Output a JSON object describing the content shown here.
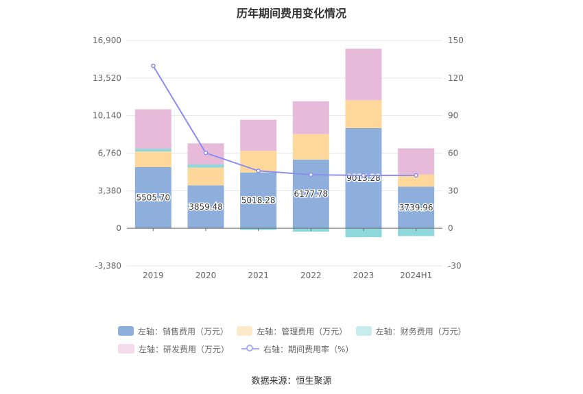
{
  "chart_data": {
    "type": "bar",
    "title": "历年期间费用变化情况",
    "categories": [
      "2019",
      "2020",
      "2021",
      "2022",
      "2023",
      "2024H1"
    ],
    "left_axis": {
      "ticks": [
        "16,900",
        "13,520",
        "10,140",
        "6,760",
        "3,380",
        "0",
        "-3,380"
      ],
      "ylim": [
        -3380,
        16900
      ]
    },
    "right_axis": {
      "ticks": [
        "150",
        "120",
        "90",
        "60",
        "30",
        "0",
        "-30"
      ],
      "ylim": [
        -30,
        150
      ]
    },
    "series": [
      {
        "name": "左轴：销售费用（万元）",
        "color": "#8eaedb",
        "values": [
          5505.7,
          3859.48,
          5018.28,
          6177.78,
          9013.28,
          3739.96
        ],
        "labels": [
          "5505.70",
          "3859.48",
          "5018.28",
          "6177.78",
          "9013.28",
          "3739.96"
        ]
      },
      {
        "name": "左轴：管理费用（万元）",
        "color": "#fdd89a",
        "values": [
          1400,
          1600,
          1950,
          2300,
          2500,
          1100
        ]
      },
      {
        "name": "左轴：财务费用（万元）",
        "color": "#8ed8dc",
        "values": [
          250,
          280,
          -150,
          -300,
          -800,
          -700
        ]
      },
      {
        "name": "左轴：研发费用（万元）",
        "color": "#e8bada",
        "values": [
          3550,
          1900,
          2800,
          2950,
          4650,
          2350
        ]
      }
    ],
    "line_series": {
      "name": "右轴：期间费用率（%）",
      "color": "#8a8df0",
      "values": [
        129.7,
        60.2,
        45.9,
        42.8,
        42.2,
        42.3
      ]
    },
    "grid": true,
    "legend_position": "bottom"
  },
  "source_text": "数据来源：恒生聚源"
}
